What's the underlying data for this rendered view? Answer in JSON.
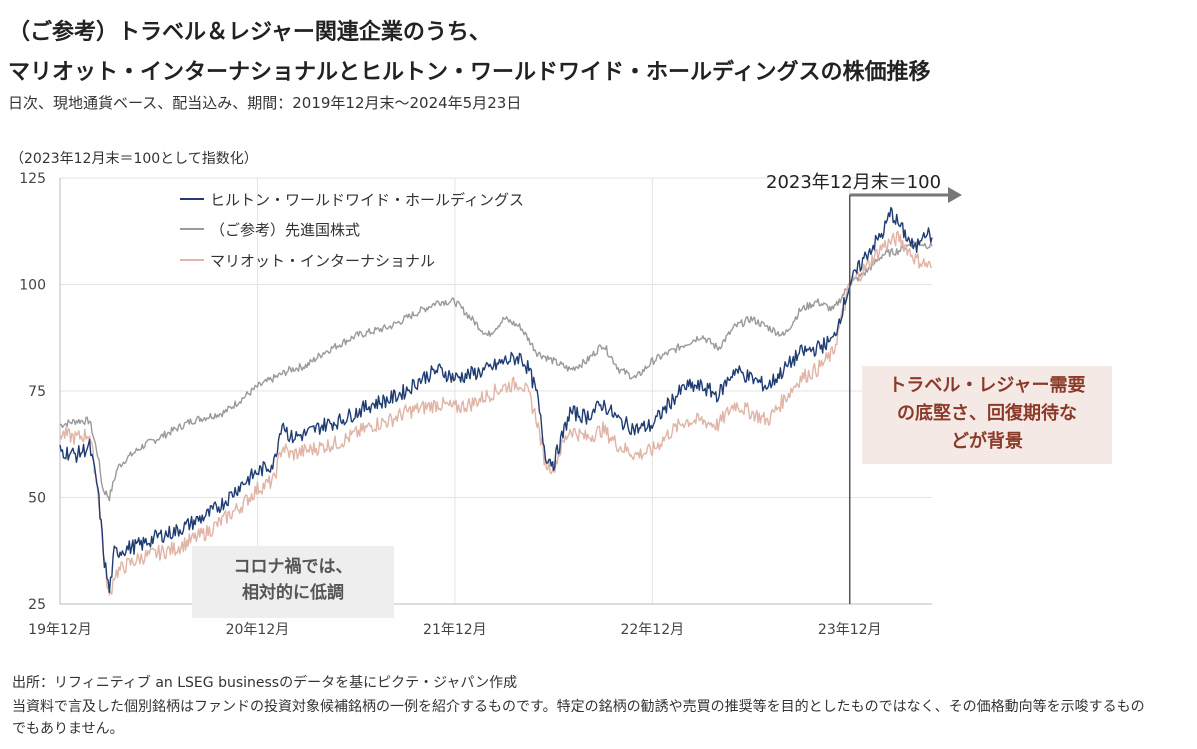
{
  "header": {
    "title_line1": "（ご参考）トラベル＆レジャー関連企業のうち、",
    "title_line2": "マリオット・インターナショナルとヒルトン・ワールドワイド・ホールディングスの株価推移",
    "subtitle": "日次、現地通貨ベース、配当込み、期間：2019年12月末～2024年5月23日",
    "unit_note": "（2023年12月末＝100として指数化）"
  },
  "annotations": {
    "covid_note_line1": "コロナ禍では、",
    "covid_note_line2": "相対的に低調",
    "callout_line1": "トラベル・レジャー需要",
    "callout_line2": "の底堅さ、回復期待な",
    "callout_line3": "どが背景",
    "ref_label": "2023年12月末＝100"
  },
  "footer": {
    "source": "出所：リフィニティブ an LSEG businessのデータを基にピクテ・ジャパン作成",
    "disclaimer": "当資料で言及した個別銘柄はファンドの投資対象候補銘柄の一例を紹介するものです。特定の銘柄の勧誘や売買の推奨等を目的としたものではなく、その価格動向等を示唆するものでもありません。"
  },
  "chart_data": {
    "type": "line",
    "x_unit": "months since 2019-12 (axis labels shown as 19年12月 … 23年12月)",
    "xlim": [
      0,
      53
    ],
    "ylim": [
      25,
      125
    ],
    "yticks": [
      25,
      50,
      75,
      100,
      125
    ],
    "xticks": [
      {
        "x": 0,
        "label": "19年12月"
      },
      {
        "x": 12,
        "label": "20年12月"
      },
      {
        "x": 24,
        "label": "21年12月"
      },
      {
        "x": 36,
        "label": "22年12月"
      },
      {
        "x": 48,
        "label": "23年12月"
      }
    ],
    "reference_x": 48,
    "series": [
      {
        "name": "ヒルトン・ワールドワイド・ホールディングス",
        "color": "#1f3c73",
        "points": [
          [
            0,
            61
          ],
          [
            1,
            60
          ],
          [
            1.8,
            62
          ],
          [
            2.3,
            52
          ],
          [
            2.7,
            35
          ],
          [
            3,
            28
          ],
          [
            3.3,
            37
          ],
          [
            4,
            38
          ],
          [
            5,
            39
          ],
          [
            6,
            41
          ],
          [
            7,
            42
          ],
          [
            8,
            44
          ],
          [
            9,
            46
          ],
          [
            10,
            49
          ],
          [
            11,
            53
          ],
          [
            12,
            56
          ],
          [
            13,
            58
          ],
          [
            13.5,
            68
          ],
          [
            14,
            64
          ],
          [
            15,
            65
          ],
          [
            16,
            67
          ],
          [
            17,
            68
          ],
          [
            18,
            70
          ],
          [
            19,
            72
          ],
          [
            20,
            73
          ],
          [
            21,
            75
          ],
          [
            22,
            78
          ],
          [
            23,
            80
          ],
          [
            24,
            78
          ],
          [
            25,
            79
          ],
          [
            26,
            80
          ],
          [
            27,
            82
          ],
          [
            28,
            83
          ],
          [
            28.5,
            80
          ],
          [
            29,
            74
          ],
          [
            29.5,
            60
          ],
          [
            30,
            58
          ],
          [
            30.5,
            64
          ],
          [
            31,
            70
          ],
          [
            32,
            69
          ],
          [
            33,
            72
          ],
          [
            34,
            68
          ],
          [
            35,
            66
          ],
          [
            36,
            67
          ],
          [
            37,
            72
          ],
          [
            38,
            76
          ],
          [
            39,
            76
          ],
          [
            40,
            74
          ],
          [
            41,
            80
          ],
          [
            42,
            78
          ],
          [
            43,
            76
          ],
          [
            44,
            80
          ],
          [
            45,
            84
          ],
          [
            46,
            85
          ],
          [
            47,
            87
          ],
          [
            48,
            100
          ],
          [
            49,
            107
          ],
          [
            50,
            112
          ],
          [
            50.5,
            117
          ],
          [
            51,
            114
          ],
          [
            52,
            108
          ],
          [
            52.5,
            113
          ],
          [
            53,
            111
          ]
        ]
      },
      {
        "name": "（ご参考）先進国株式",
        "color": "#9a9a9a",
        "points": [
          [
            0,
            67
          ],
          [
            1,
            68
          ],
          [
            1.8,
            68
          ],
          [
            2.3,
            60
          ],
          [
            2.6,
            52
          ],
          [
            3,
            50
          ],
          [
            3.5,
            57
          ],
          [
            4,
            59
          ],
          [
            5,
            62
          ],
          [
            6,
            64
          ],
          [
            7,
            66
          ],
          [
            8,
            68
          ],
          [
            9,
            69
          ],
          [
            10,
            70
          ],
          [
            11,
            73
          ],
          [
            12,
            76
          ],
          [
            13,
            78
          ],
          [
            14,
            80
          ],
          [
            15,
            81
          ],
          [
            16,
            84
          ],
          [
            17,
            86
          ],
          [
            18,
            88
          ],
          [
            19,
            89
          ],
          [
            20,
            90
          ],
          [
            21,
            92
          ],
          [
            22,
            94
          ],
          [
            23,
            96
          ],
          [
            24,
            96
          ],
          [
            25,
            92
          ],
          [
            26,
            88
          ],
          [
            27,
            92
          ],
          [
            28,
            90
          ],
          [
            29,
            84
          ],
          [
            30,
            82
          ],
          [
            31,
            80
          ],
          [
            32,
            82
          ],
          [
            33,
            86
          ],
          [
            34,
            80
          ],
          [
            35,
            78
          ],
          [
            36,
            82
          ],
          [
            37,
            84
          ],
          [
            38,
            86
          ],
          [
            39,
            88
          ],
          [
            40,
            85
          ],
          [
            41,
            90
          ],
          [
            42,
            92
          ],
          [
            43,
            90
          ],
          [
            44,
            88
          ],
          [
            45,
            94
          ],
          [
            46,
            96
          ],
          [
            47,
            94
          ],
          [
            48,
            100
          ],
          [
            49,
            103
          ],
          [
            50,
            107
          ],
          [
            51,
            108
          ],
          [
            52,
            110
          ],
          [
            53,
            109
          ]
        ]
      },
      {
        "name": "マリオット・インターナショナル",
        "color": "#e0b4a6",
        "points": [
          [
            0,
            65
          ],
          [
            1,
            64
          ],
          [
            1.8,
            65
          ],
          [
            2.3,
            52
          ],
          [
            2.7,
            35
          ],
          [
            3,
            26
          ],
          [
            3.3,
            32
          ],
          [
            4,
            34
          ],
          [
            5,
            36
          ],
          [
            6,
            37
          ],
          [
            7,
            38
          ],
          [
            8,
            40
          ],
          [
            9,
            42
          ],
          [
            10,
            45
          ],
          [
            11,
            48
          ],
          [
            12,
            52
          ],
          [
            13,
            54
          ],
          [
            13.5,
            62
          ],
          [
            14,
            60
          ],
          [
            15,
            61
          ],
          [
            16,
            62
          ],
          [
            17,
            63
          ],
          [
            18,
            65
          ],
          [
            19,
            67
          ],
          [
            20,
            68
          ],
          [
            21,
            70
          ],
          [
            22,
            71
          ],
          [
            23,
            72
          ],
          [
            24,
            71
          ],
          [
            25,
            72
          ],
          [
            26,
            74
          ],
          [
            27,
            76
          ],
          [
            28,
            77
          ],
          [
            28.5,
            74
          ],
          [
            29,
            68
          ],
          [
            29.5,
            58
          ],
          [
            30,
            57
          ],
          [
            30.5,
            62
          ],
          [
            31,
            66
          ],
          [
            32,
            64
          ],
          [
            33,
            66
          ],
          [
            34,
            62
          ],
          [
            35,
            60
          ],
          [
            36,
            61
          ],
          [
            37,
            65
          ],
          [
            38,
            68
          ],
          [
            39,
            68
          ],
          [
            40,
            67
          ],
          [
            41,
            72
          ],
          [
            42,
            70
          ],
          [
            43,
            68
          ],
          [
            44,
            73
          ],
          [
            45,
            78
          ],
          [
            46,
            80
          ],
          [
            47,
            84
          ],
          [
            48,
            100
          ],
          [
            49,
            104
          ],
          [
            50,
            109
          ],
          [
            51,
            111
          ],
          [
            52,
            106
          ],
          [
            53,
            104
          ]
        ]
      }
    ]
  }
}
